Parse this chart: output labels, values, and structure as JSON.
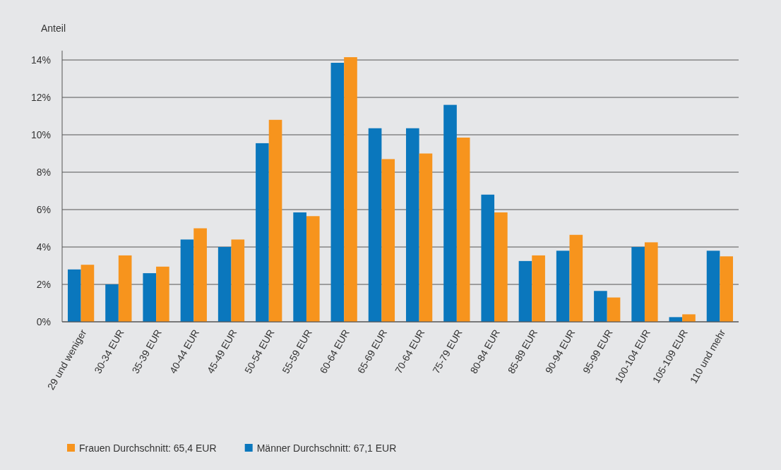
{
  "chart_data": {
    "type": "bar",
    "ylabel": "Anteil",
    "categories": [
      "29 und weniger",
      "30-34 EUR",
      "35-39 EUR",
      "40-44 EUR",
      "45-49 EUR",
      "50-54 EUR",
      "55-59 EUR",
      "60-64 EUR",
      "65-69 EUR",
      "70-64 EUR",
      "75-79 EUR",
      "80-84 EUR",
      "85-89 EUR",
      "90-94 EUR",
      "95-99 EUR",
      "100-104 EUR",
      "105-109 EUR",
      "110 und mehr"
    ],
    "series": [
      {
        "name": "Männer Durchschnitt: 67,1 EUR",
        "color": "#0a77bd",
        "values": [
          2.8,
          2.0,
          2.6,
          4.4,
          4.0,
          9.55,
          5.85,
          13.85,
          10.35,
          10.35,
          11.6,
          6.8,
          3.25,
          3.8,
          1.65,
          4.0,
          0.25,
          3.8
        ]
      },
      {
        "name": "Frauen Durchschnitt: 65,4 EUR",
        "color": "#f7941d",
        "values": [
          3.05,
          3.55,
          2.95,
          5.0,
          4.4,
          10.8,
          5.65,
          14.15,
          8.7,
          9.0,
          9.85,
          5.85,
          3.55,
          4.65,
          1.3,
          4.25,
          0.4,
          3.5
        ]
      }
    ],
    "ylim": [
      0,
      14.5
    ],
    "yticks": [
      {
        "value": 0,
        "label": "0%"
      },
      {
        "value": 2,
        "label": "2%"
      },
      {
        "value": 4,
        "label": "4%"
      },
      {
        "value": 6,
        "label": "6%"
      },
      {
        "value": 8,
        "label": "8%"
      },
      {
        "value": 10,
        "label": "10%"
      },
      {
        "value": 12,
        "label": "12%"
      },
      {
        "value": 14,
        "label": "14%"
      }
    ],
    "grid": "y",
    "legend": "bottom left"
  }
}
